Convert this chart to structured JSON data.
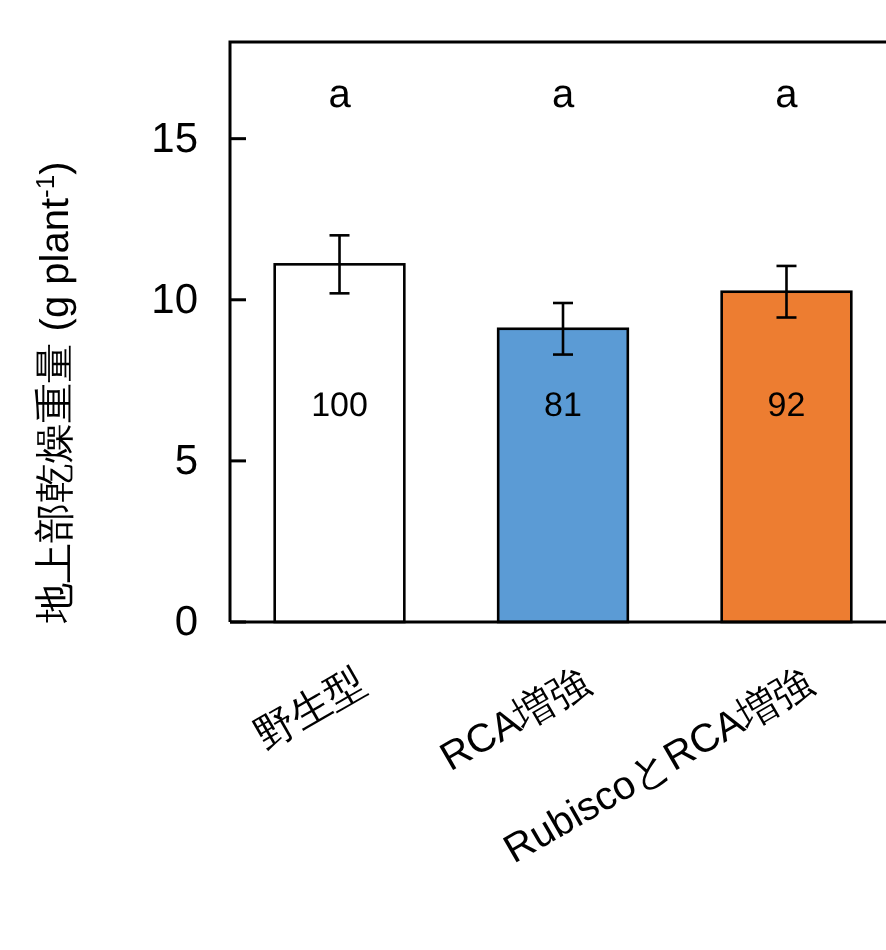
{
  "chart_data": {
    "type": "bar",
    "ylabel": "地上部乾燥重量 (g plant$^{-1}$)",
    "categories": [
      "野生型",
      "RCA増強",
      "RubiscoとRCA増強"
    ],
    "values": [
      11.1,
      9.1,
      10.25
    ],
    "colors": [
      "#ffffff",
      "#5b9bd5",
      "#ed7d31"
    ],
    "errors": [
      0.9,
      0.8,
      0.8
    ],
    "annotations": [
      "a",
      "a",
      "a",
      "100",
      "81",
      "92"
    ],
    "ylim": [
      0,
      18
    ],
    "yticks": [
      0,
      5,
      10,
      15
    ],
    "grid": false
  }
}
